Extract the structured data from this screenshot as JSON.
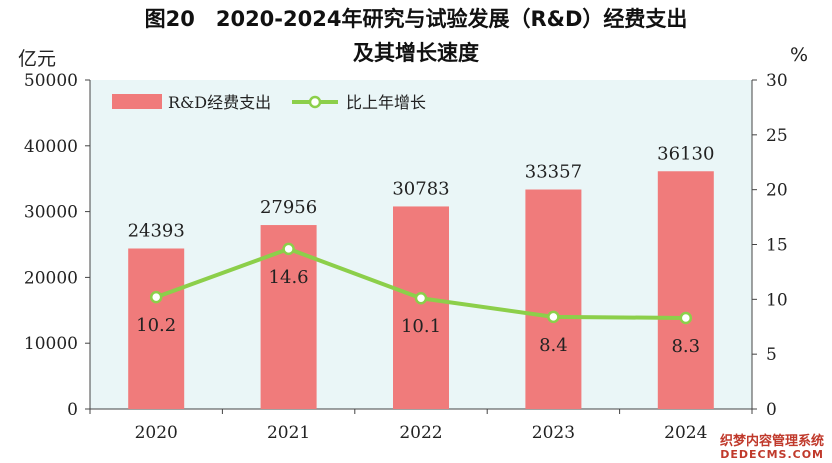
{
  "chart_data": {
    "type": "bar",
    "title": "图20　2020-2024年研究与试验发展（R&D）经费支出",
    "subtitle": "及其增长速度",
    "left_unit": "亿元",
    "right_unit": "%",
    "categories": [
      "2020",
      "2021",
      "2022",
      "2023",
      "2024"
    ],
    "series": [
      {
        "name": "R&D经费支出",
        "type": "bar",
        "axis": "left",
        "values": [
          24393,
          27956,
          30783,
          33357,
          36130
        ],
        "labels": [
          "24393",
          "27956",
          "30783",
          "33357",
          "36130"
        ],
        "color": "#f07b7b"
      },
      {
        "name": "比上年增长",
        "type": "line",
        "axis": "right",
        "values": [
          10.2,
          14.6,
          10.1,
          8.4,
          8.3
        ],
        "labels": [
          "10.2",
          "14.6",
          "10.1",
          "8.4",
          "8.3"
        ],
        "color": "#8ccf4a"
      }
    ],
    "y_left": {
      "min": 0,
      "max": 50000,
      "ticks": [
        "0",
        "10000",
        "20000",
        "30000",
        "40000",
        "50000"
      ]
    },
    "y_right": {
      "min": 0,
      "max": 30,
      "ticks": [
        "0",
        "5",
        "10",
        "15",
        "20",
        "25",
        "30"
      ]
    },
    "legend_position": "top-left",
    "grid": false,
    "plot_background": "#eaf6f7"
  },
  "watermark": {
    "line1": "织梦内容管理系统",
    "line2": "DEDECMS.COM"
  }
}
